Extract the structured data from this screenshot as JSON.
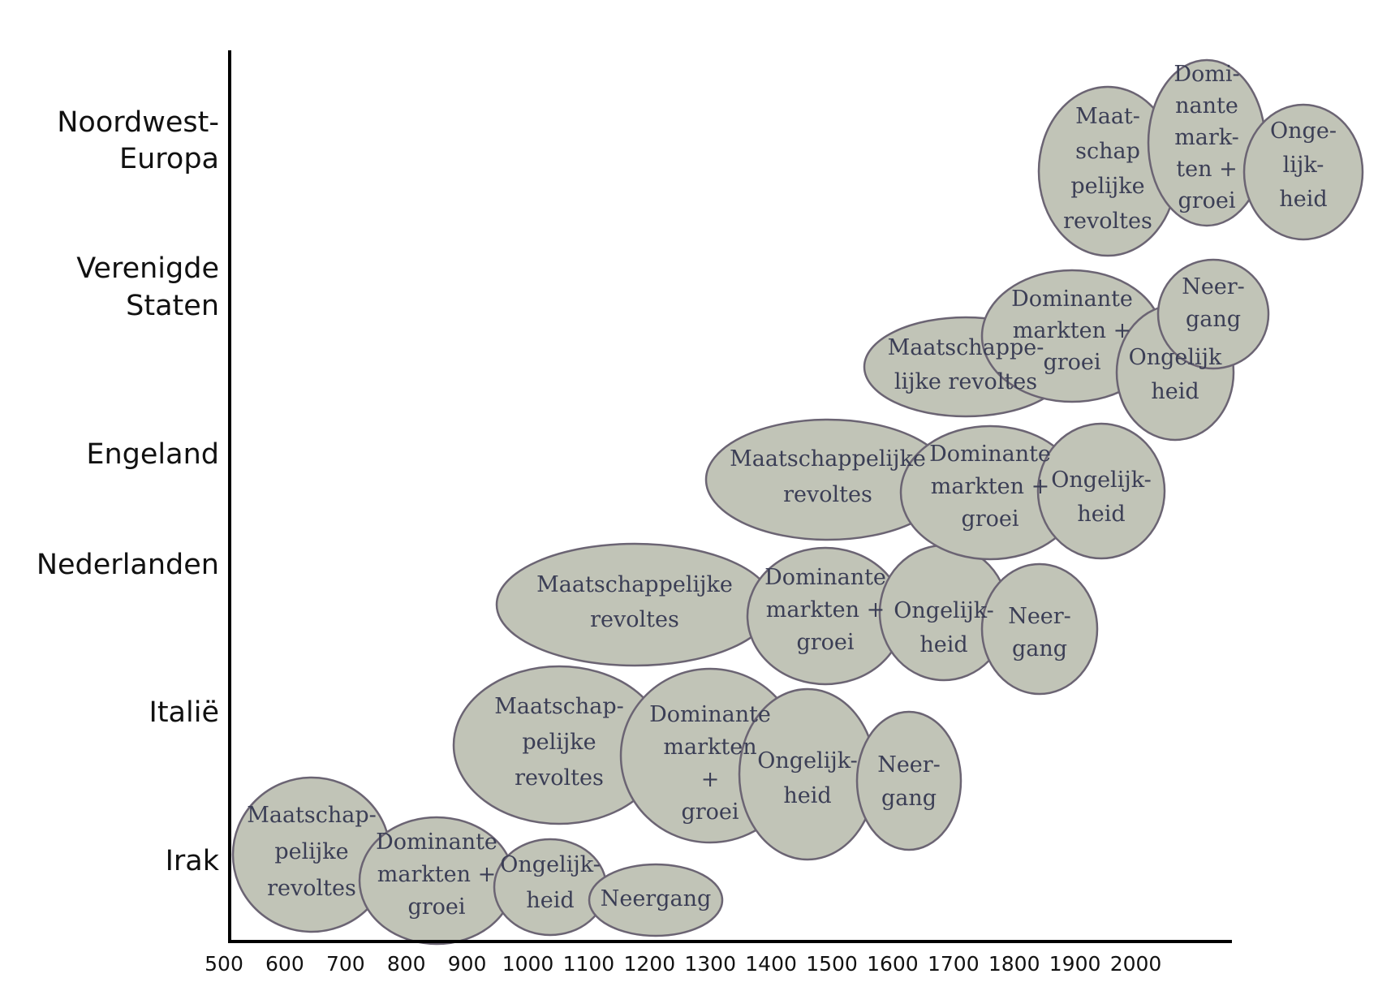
{
  "diagram": {
    "y_categories": [
      [
        "Noordwest-",
        "Europa"
      ],
      [
        "Verenigde",
        "Staten"
      ],
      [
        "Engeland"
      ],
      [
        "Nederlanden"
      ],
      [
        "Italië"
      ],
      [
        "Irak"
      ]
    ],
    "x_ticks": [
      "500",
      "600",
      "700",
      "800",
      "900",
      "1000",
      "1100",
      "1200",
      "1300",
      "1400",
      "1500",
      "1600",
      "1700",
      "1800",
      "1900",
      "2000"
    ],
    "colors": {
      "ellipse_fill": "#c1c4b7",
      "ellipse_stroke": "#6b6473",
      "phase_text": "#3b3e55",
      "axis": "#000000"
    },
    "phases": [
      {
        "region": "Irak",
        "lines": [
          "Maatschap-",
          "pelijke",
          "revoltes"
        ]
      },
      {
        "region": "Irak",
        "lines": [
          "Dominante",
          "markten +",
          "groei"
        ]
      },
      {
        "region": "Irak",
        "lines": [
          "Ongelijk-",
          "heid"
        ]
      },
      {
        "region": "Irak",
        "lines": [
          "Neergang"
        ]
      },
      {
        "region": "Italië",
        "lines": [
          "Maatschap-",
          "pelijke",
          "revoltes"
        ]
      },
      {
        "region": "Italië",
        "lines": [
          "Dominante",
          "markten",
          "+",
          "groei"
        ]
      },
      {
        "region": "Italië",
        "lines": [
          "Ongelijk-",
          "heid"
        ]
      },
      {
        "region": "Italië",
        "lines": [
          "Neer-",
          "gang"
        ]
      },
      {
        "region": "Nederlanden",
        "lines": [
          "Maatschappelijke",
          "revoltes"
        ]
      },
      {
        "region": "Nederlanden",
        "lines": [
          "Dominante",
          "markten +",
          "groei"
        ]
      },
      {
        "region": "Nederlanden",
        "lines": [
          "Ongelijk-",
          "heid"
        ]
      },
      {
        "region": "Nederlanden",
        "lines": [
          "Neer-",
          "gang"
        ]
      },
      {
        "region": "Engeland",
        "lines": [
          "Maatschappelijke",
          "revoltes"
        ]
      },
      {
        "region": "Engeland",
        "lines": [
          "Dominante",
          "markten +",
          "groei"
        ]
      },
      {
        "region": "Engeland",
        "lines": [
          "Ongelijk-",
          "heid"
        ]
      },
      {
        "region": "Verenigde Staten",
        "lines": [
          "Maatschappe-",
          "lijke revoltes"
        ]
      },
      {
        "region": "Verenigde Staten",
        "lines": [
          "Dominante",
          "markten +",
          "groei"
        ]
      },
      {
        "region": "Verenigde Staten",
        "lines": [
          "Ongelijk",
          "heid"
        ]
      },
      {
        "region": "Verenigde Staten",
        "lines": [
          "Neer-",
          "gang"
        ]
      },
      {
        "region": "Noordwest-Europa",
        "lines": [
          "Maat-",
          "schap",
          "pelijke",
          "revoltes"
        ]
      },
      {
        "region": "Noordwest-Europa",
        "lines": [
          "Domi-",
          "nante",
          "mark-",
          "ten +",
          "groei"
        ]
      },
      {
        "region": "Noordwest-Europa",
        "lines": [
          "Onge-",
          "lijk-",
          "heid"
        ]
      }
    ]
  }
}
